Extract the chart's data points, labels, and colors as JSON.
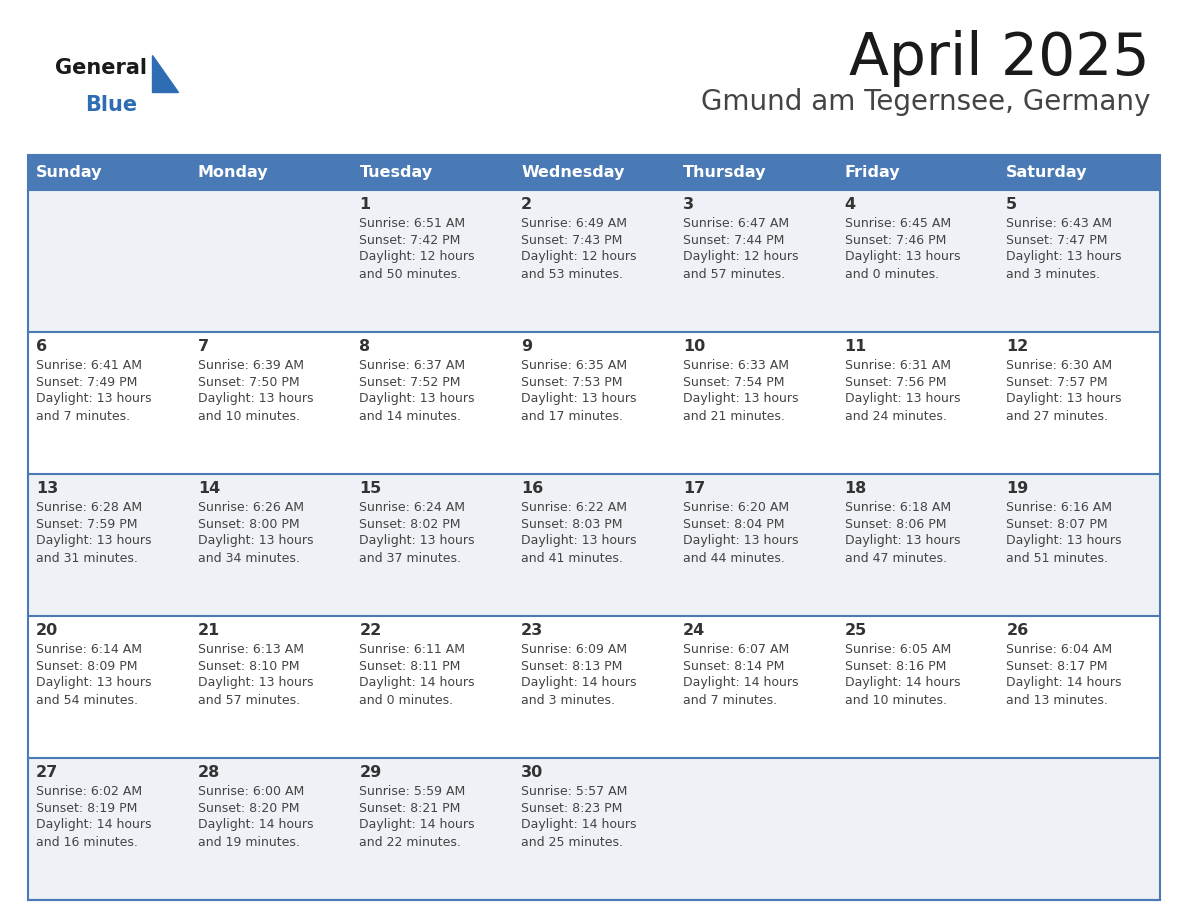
{
  "title": "April 2025",
  "subtitle": "Gmund am Tegernsee, Germany",
  "days_of_week": [
    "Sunday",
    "Monday",
    "Tuesday",
    "Wednesday",
    "Thursday",
    "Friday",
    "Saturday"
  ],
  "header_bg": "#4a7ab5",
  "header_text": "#ffffff",
  "row_bg_odd": "#eef1f5",
  "row_bg_even": "#ffffff",
  "separator_color": "#4a7ab5",
  "day_number_color": "#333333",
  "cell_text_color": "#444444",
  "title_color": "#1a1a1a",
  "subtitle_color": "#444444",
  "logo_general_color": "#1a1a1a",
  "logo_blue_color": "#2e6db4",
  "weeks": [
    [
      {
        "day": "",
        "sunrise": "",
        "sunset": "",
        "daylight": ""
      },
      {
        "day": "",
        "sunrise": "",
        "sunset": "",
        "daylight": ""
      },
      {
        "day": "1",
        "sunrise": "Sunrise: 6:51 AM",
        "sunset": "Sunset: 7:42 PM",
        "daylight": "Daylight: 12 hours\nand 50 minutes."
      },
      {
        "day": "2",
        "sunrise": "Sunrise: 6:49 AM",
        "sunset": "Sunset: 7:43 PM",
        "daylight": "Daylight: 12 hours\nand 53 minutes."
      },
      {
        "day": "3",
        "sunrise": "Sunrise: 6:47 AM",
        "sunset": "Sunset: 7:44 PM",
        "daylight": "Daylight: 12 hours\nand 57 minutes."
      },
      {
        "day": "4",
        "sunrise": "Sunrise: 6:45 AM",
        "sunset": "Sunset: 7:46 PM",
        "daylight": "Daylight: 13 hours\nand 0 minutes."
      },
      {
        "day": "5",
        "sunrise": "Sunrise: 6:43 AM",
        "sunset": "Sunset: 7:47 PM",
        "daylight": "Daylight: 13 hours\nand 3 minutes."
      }
    ],
    [
      {
        "day": "6",
        "sunrise": "Sunrise: 6:41 AM",
        "sunset": "Sunset: 7:49 PM",
        "daylight": "Daylight: 13 hours\nand 7 minutes."
      },
      {
        "day": "7",
        "sunrise": "Sunrise: 6:39 AM",
        "sunset": "Sunset: 7:50 PM",
        "daylight": "Daylight: 13 hours\nand 10 minutes."
      },
      {
        "day": "8",
        "sunrise": "Sunrise: 6:37 AM",
        "sunset": "Sunset: 7:52 PM",
        "daylight": "Daylight: 13 hours\nand 14 minutes."
      },
      {
        "day": "9",
        "sunrise": "Sunrise: 6:35 AM",
        "sunset": "Sunset: 7:53 PM",
        "daylight": "Daylight: 13 hours\nand 17 minutes."
      },
      {
        "day": "10",
        "sunrise": "Sunrise: 6:33 AM",
        "sunset": "Sunset: 7:54 PM",
        "daylight": "Daylight: 13 hours\nand 21 minutes."
      },
      {
        "day": "11",
        "sunrise": "Sunrise: 6:31 AM",
        "sunset": "Sunset: 7:56 PM",
        "daylight": "Daylight: 13 hours\nand 24 minutes."
      },
      {
        "day": "12",
        "sunrise": "Sunrise: 6:30 AM",
        "sunset": "Sunset: 7:57 PM",
        "daylight": "Daylight: 13 hours\nand 27 minutes."
      }
    ],
    [
      {
        "day": "13",
        "sunrise": "Sunrise: 6:28 AM",
        "sunset": "Sunset: 7:59 PM",
        "daylight": "Daylight: 13 hours\nand 31 minutes."
      },
      {
        "day": "14",
        "sunrise": "Sunrise: 6:26 AM",
        "sunset": "Sunset: 8:00 PM",
        "daylight": "Daylight: 13 hours\nand 34 minutes."
      },
      {
        "day": "15",
        "sunrise": "Sunrise: 6:24 AM",
        "sunset": "Sunset: 8:02 PM",
        "daylight": "Daylight: 13 hours\nand 37 minutes."
      },
      {
        "day": "16",
        "sunrise": "Sunrise: 6:22 AM",
        "sunset": "Sunset: 8:03 PM",
        "daylight": "Daylight: 13 hours\nand 41 minutes."
      },
      {
        "day": "17",
        "sunrise": "Sunrise: 6:20 AM",
        "sunset": "Sunset: 8:04 PM",
        "daylight": "Daylight: 13 hours\nand 44 minutes."
      },
      {
        "day": "18",
        "sunrise": "Sunrise: 6:18 AM",
        "sunset": "Sunset: 8:06 PM",
        "daylight": "Daylight: 13 hours\nand 47 minutes."
      },
      {
        "day": "19",
        "sunrise": "Sunrise: 6:16 AM",
        "sunset": "Sunset: 8:07 PM",
        "daylight": "Daylight: 13 hours\nand 51 minutes."
      }
    ],
    [
      {
        "day": "20",
        "sunrise": "Sunrise: 6:14 AM",
        "sunset": "Sunset: 8:09 PM",
        "daylight": "Daylight: 13 hours\nand 54 minutes."
      },
      {
        "day": "21",
        "sunrise": "Sunrise: 6:13 AM",
        "sunset": "Sunset: 8:10 PM",
        "daylight": "Daylight: 13 hours\nand 57 minutes."
      },
      {
        "day": "22",
        "sunrise": "Sunrise: 6:11 AM",
        "sunset": "Sunset: 8:11 PM",
        "daylight": "Daylight: 14 hours\nand 0 minutes."
      },
      {
        "day": "23",
        "sunrise": "Sunrise: 6:09 AM",
        "sunset": "Sunset: 8:13 PM",
        "daylight": "Daylight: 14 hours\nand 3 minutes."
      },
      {
        "day": "24",
        "sunrise": "Sunrise: 6:07 AM",
        "sunset": "Sunset: 8:14 PM",
        "daylight": "Daylight: 14 hours\nand 7 minutes."
      },
      {
        "day": "25",
        "sunrise": "Sunrise: 6:05 AM",
        "sunset": "Sunset: 8:16 PM",
        "daylight": "Daylight: 14 hours\nand 10 minutes."
      },
      {
        "day": "26",
        "sunrise": "Sunrise: 6:04 AM",
        "sunset": "Sunset: 8:17 PM",
        "daylight": "Daylight: 14 hours\nand 13 minutes."
      }
    ],
    [
      {
        "day": "27",
        "sunrise": "Sunrise: 6:02 AM",
        "sunset": "Sunset: 8:19 PM",
        "daylight": "Daylight: 14 hours\nand 16 minutes."
      },
      {
        "day": "28",
        "sunrise": "Sunrise: 6:00 AM",
        "sunset": "Sunset: 8:20 PM",
        "daylight": "Daylight: 14 hours\nand 19 minutes."
      },
      {
        "day": "29",
        "sunrise": "Sunrise: 5:59 AM",
        "sunset": "Sunset: 8:21 PM",
        "daylight": "Daylight: 14 hours\nand 22 minutes."
      },
      {
        "day": "30",
        "sunrise": "Sunrise: 5:57 AM",
        "sunset": "Sunset: 8:23 PM",
        "daylight": "Daylight: 14 hours\nand 25 minutes."
      },
      {
        "day": "",
        "sunrise": "",
        "sunset": "",
        "daylight": ""
      },
      {
        "day": "",
        "sunrise": "",
        "sunset": "",
        "daylight": ""
      },
      {
        "day": "",
        "sunrise": "",
        "sunset": "",
        "daylight": ""
      }
    ]
  ]
}
